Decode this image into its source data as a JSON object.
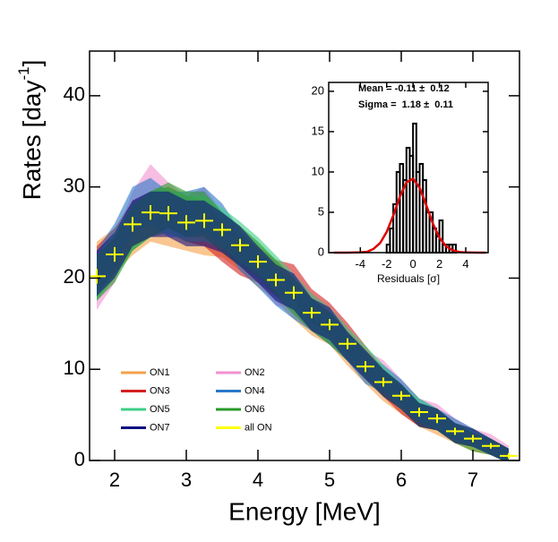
{
  "chart_data": [
    {
      "type": "band",
      "x_label": "Energy [MeV]",
      "y_label": [
        "Rates [day",
        "-1",
        "]"
      ],
      "xlim": [
        1.65,
        7.65
      ],
      "ylim": [
        0,
        44.9
      ],
      "xticks": [
        2,
        3,
        4,
        5,
        6,
        7
      ],
      "yticks": [
        0,
        10,
        20,
        30,
        40
      ],
      "x": [
        1.75,
        2.0,
        2.25,
        2.5,
        2.75,
        3.0,
        3.25,
        3.5,
        3.75,
        4.0,
        4.25,
        4.5,
        4.75,
        5.0,
        5.25,
        5.5,
        5.75,
        6.0,
        6.25,
        6.5,
        6.75,
        7.0,
        7.25,
        7.5
      ],
      "series": [
        {
          "name": "ON1",
          "color": "#f5a04a",
          "values": [
            21.5,
            23.0,
            25.0,
            26.5,
            26.0,
            25.5,
            25.0,
            24.5,
            23.0,
            21.0,
            19.5,
            17.5,
            15.5,
            14.5,
            12.0,
            10.0,
            8.0,
            6.5,
            5.0,
            4.0,
            3.0,
            2.0,
            1.5,
            0.5
          ],
          "errors": [
            2.5,
            2.5,
            2.5,
            2.5,
            2.5,
            2.5,
            2.5,
            2.2,
            2.2,
            2.0,
            2.0,
            2.0,
            1.8,
            1.8,
            1.6,
            1.6,
            1.5,
            1.4,
            1.3,
            1.2,
            1.1,
            1.0,
            0.9,
            0.8
          ]
        },
        {
          "name": "ON2",
          "color": "#f291cf",
          "values": [
            19.0,
            22.0,
            27.0,
            30.0,
            28.0,
            26.5,
            27.5,
            25.0,
            23.5,
            21.5,
            19.0,
            18.5,
            16.5,
            15.0,
            13.0,
            10.5,
            9.5,
            7.5,
            5.5,
            5.0,
            3.5,
            2.5,
            2.0,
            0.8
          ],
          "errors": [
            2.5,
            2.5,
            2.5,
            2.5,
            2.5,
            2.5,
            2.5,
            2.2,
            2.2,
            2.0,
            2.0,
            2.0,
            1.8,
            1.8,
            1.6,
            1.6,
            1.5,
            1.4,
            1.3,
            1.2,
            1.1,
            1.0,
            0.9,
            0.8
          ]
        },
        {
          "name": "ON3",
          "color": "#d42020",
          "values": [
            21.0,
            23.0,
            26.0,
            27.0,
            27.5,
            26.5,
            26.0,
            24.0,
            22.5,
            21.5,
            20.0,
            19.5,
            17.0,
            15.5,
            13.5,
            11.0,
            8.5,
            6.5,
            5.0,
            4.5,
            3.0,
            2.5,
            1.5,
            0.5
          ],
          "errors": [
            2.5,
            2.5,
            2.5,
            2.5,
            2.5,
            2.5,
            2.5,
            2.2,
            2.2,
            2.0,
            2.0,
            2.0,
            1.8,
            1.8,
            1.6,
            1.6,
            1.5,
            1.4,
            1.3,
            1.2,
            1.1,
            1.0,
            0.9,
            0.8
          ]
        },
        {
          "name": "ON4",
          "color": "#2a78c8",
          "values": [
            20.5,
            23.5,
            27.5,
            28.5,
            27.0,
            27.0,
            27.5,
            26.0,
            23.0,
            21.0,
            19.0,
            17.5,
            16.0,
            14.5,
            12.5,
            10.0,
            9.0,
            7.5,
            5.5,
            4.5,
            3.5,
            2.5,
            1.5,
            0.5
          ],
          "errors": [
            2.5,
            2.5,
            2.5,
            2.5,
            2.5,
            2.5,
            2.5,
            2.2,
            2.2,
            2.0,
            2.0,
            2.0,
            1.8,
            1.8,
            1.6,
            1.6,
            1.5,
            1.4,
            1.3,
            1.2,
            1.1,
            1.0,
            0.9,
            0.8
          ]
        },
        {
          "name": "ON5",
          "color": "#3ccf86",
          "values": [
            20.0,
            22.5,
            25.5,
            27.0,
            27.5,
            26.5,
            26.5,
            25.5,
            24.0,
            22.5,
            20.5,
            18.5,
            16.5,
            15.0,
            13.0,
            11.0,
            9.0,
            7.0,
            5.5,
            4.5,
            3.0,
            2.5,
            1.5,
            0.5
          ],
          "errors": [
            2.5,
            2.5,
            2.5,
            2.5,
            2.5,
            2.5,
            2.5,
            2.2,
            2.2,
            2.0,
            2.0,
            2.0,
            1.8,
            1.8,
            1.6,
            1.6,
            1.5,
            1.4,
            1.3,
            1.2,
            1.1,
            1.0,
            0.9,
            0.8
          ]
        },
        {
          "name": "ON6",
          "color": "#2a9a2a",
          "values": [
            20.0,
            22.0,
            25.5,
            27.0,
            28.0,
            27.0,
            27.0,
            25.0,
            23.5,
            22.0,
            20.0,
            18.0,
            16.0,
            14.5,
            12.5,
            10.5,
            8.5,
            7.0,
            5.0,
            4.5,
            3.0,
            2.0,
            1.5,
            0.5
          ],
          "errors": [
            2.5,
            2.5,
            2.5,
            2.5,
            2.5,
            2.5,
            2.5,
            2.2,
            2.2,
            2.0,
            2.0,
            2.0,
            1.8,
            1.8,
            1.6,
            1.6,
            1.5,
            1.4,
            1.3,
            1.2,
            1.1,
            1.0,
            0.9,
            0.8
          ]
        },
        {
          "name": "ON7",
          "color": "#101080",
          "values": [
            20.5,
            22.5,
            26.0,
            27.0,
            27.0,
            26.0,
            26.0,
            25.0,
            23.5,
            21.5,
            19.5,
            18.5,
            16.0,
            15.0,
            12.5,
            10.5,
            8.5,
            7.0,
            5.0,
            4.5,
            3.0,
            2.5,
            1.5,
            0.5
          ],
          "errors": [
            2.5,
            2.5,
            2.5,
            2.5,
            2.5,
            2.5,
            2.5,
            2.2,
            2.2,
            2.0,
            2.0,
            2.0,
            1.8,
            1.8,
            1.6,
            1.6,
            1.5,
            1.4,
            1.3,
            1.2,
            1.1,
            1.0,
            0.9,
            0.8
          ]
        },
        {
          "name": "all ON",
          "color": "#ffff00",
          "xerr": 0.125,
          "values": [
            20.2,
            22.6,
            25.9,
            27.2,
            27.1,
            26.1,
            26.3,
            25.3,
            23.6,
            21.8,
            19.8,
            18.4,
            16.2,
            14.9,
            12.8,
            10.3,
            8.6,
            7.1,
            5.3,
            4.6,
            3.2,
            2.4,
            1.6,
            0.5
          ],
          "errors": [
            0.8,
            0.8,
            0.8,
            0.8,
            0.8,
            0.8,
            0.8,
            0.7,
            0.7,
            0.7,
            0.7,
            0.7,
            0.6,
            0.6,
            0.6,
            0.6,
            0.5,
            0.5,
            0.5,
            0.5,
            0.4,
            0.4,
            0.3,
            0.3
          ]
        }
      ]
    },
    {
      "type": "histogram",
      "x_label": "Residuals [σ]",
      "stats": [
        "Mean = -0.11 ±  0.12",
        "Sigma =  1.18 ±  0.11"
      ],
      "xlim": [
        -6.4,
        5.7
      ],
      "ylim": [
        0,
        21.1
      ],
      "xticks": [
        -4,
        -2,
        0,
        2,
        4
      ],
      "yticks": [
        0,
        5,
        10,
        15,
        20
      ],
      "bins": [
        -2.0,
        -1.75,
        -1.5,
        -1.25,
        -1.0,
        -0.75,
        -0.5,
        -0.25,
        0.0,
        0.25,
        0.5,
        0.75,
        1.0,
        1.25,
        1.5,
        1.75,
        2.0,
        2.25,
        2.5,
        2.75,
        3.0,
        3.25
      ],
      "counts": [
        1,
        3,
        6,
        10,
        11,
        9,
        13,
        12,
        16,
        10,
        11,
        9,
        5,
        5,
        3,
        2,
        4,
        1,
        1,
        1,
        1
      ],
      "color": "#000000",
      "fit": {
        "color": "#dd0000",
        "x": [
          -6,
          -5,
          -4,
          -3.5,
          -3,
          -2.5,
          -2,
          -1.5,
          -1,
          -0.5,
          0,
          0.5,
          1,
          1.5,
          2,
          2.5,
          3,
          3.5,
          4,
          5,
          5.5
        ],
        "y": [
          0,
          0.002,
          0.04,
          0.1,
          0.46,
          1.18,
          2.56,
          4.6,
          6.93,
          8.71,
          9.16,
          8.05,
          5.9,
          3.62,
          1.86,
          0.8,
          0.29,
          0.085,
          0.021,
          0,
          0
        ]
      }
    }
  ]
}
